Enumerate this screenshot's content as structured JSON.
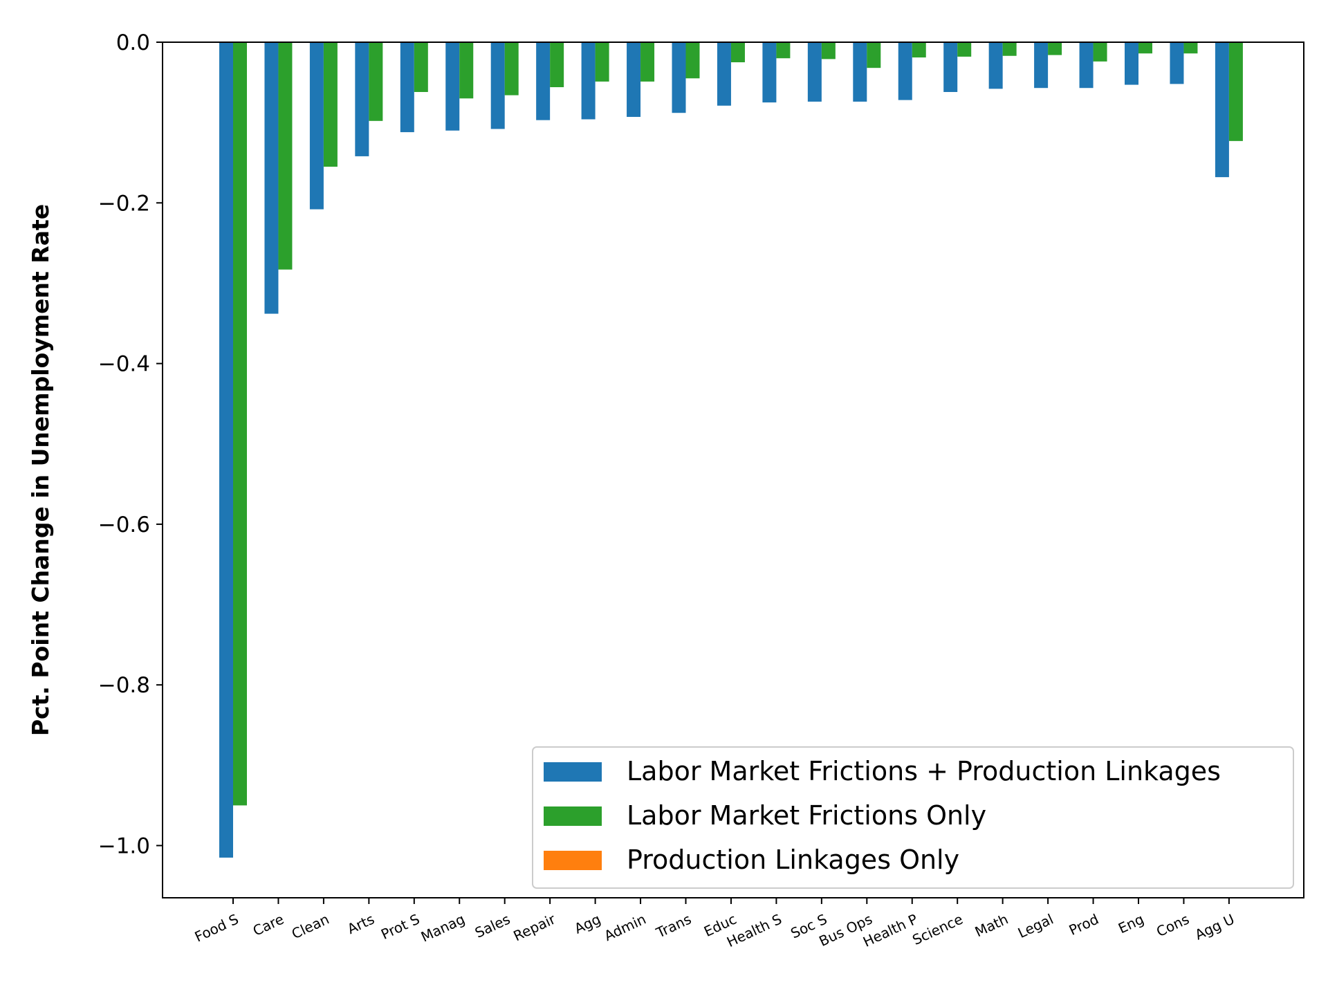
{
  "chart_data": {
    "type": "bar",
    "title": "",
    "xlabel": "",
    "ylabel": "Pct. Point Change in Unemployment Rate",
    "ylim": [
      -1.065,
      0.0
    ],
    "yticks": [
      0.0,
      -0.2,
      -0.4,
      -0.6,
      -0.8,
      -1.0
    ],
    "ytick_labels": [
      "0.0",
      "−0.2",
      "−0.4",
      "−0.6",
      "−0.8",
      "−1.0"
    ],
    "grid": false,
    "legend_position": "bottom-right",
    "categories": [
      "Food S",
      "Care",
      "Clean",
      "Arts",
      "Prot S",
      "Manag",
      "Sales",
      "Repair",
      "Agg",
      "Admin",
      "Trans",
      "Educ",
      "Health S",
      "Soc S",
      "Bus Ops",
      "Health P",
      "Science",
      "Math",
      "Legal",
      "Prod",
      "Eng",
      "Cons",
      "Agg U"
    ],
    "series": [
      {
        "name": "Labor Market Frictions + Production Linkages",
        "color": "#1f77b4",
        "values": [
          -1.015,
          -0.338,
          -0.208,
          -0.142,
          -0.112,
          -0.11,
          -0.108,
          -0.097,
          -0.096,
          -0.093,
          -0.088,
          -0.079,
          -0.075,
          -0.074,
          -0.074,
          -0.072,
          -0.062,
          -0.058,
          -0.057,
          -0.057,
          -0.053,
          -0.052,
          -0.168
        ]
      },
      {
        "name": "Labor Market Frictions Only",
        "color": "#2ca02c",
        "values": [
          -0.95,
          -0.283,
          -0.155,
          -0.098,
          -0.062,
          -0.07,
          -0.066,
          -0.056,
          -0.049,
          -0.049,
          -0.045,
          -0.025,
          -0.02,
          -0.021,
          -0.032,
          -0.019,
          -0.018,
          -0.017,
          -0.016,
          -0.024,
          -0.014,
          -0.014,
          -0.123
        ]
      },
      {
        "name": "Production Linkages Only",
        "color": "#ff7f0e",
        "values": [
          0,
          0,
          0,
          0,
          0,
          0,
          0,
          0,
          0,
          0,
          0,
          0,
          0,
          0,
          0,
          0,
          0,
          0,
          0,
          0,
          0,
          0,
          0
        ]
      }
    ]
  }
}
